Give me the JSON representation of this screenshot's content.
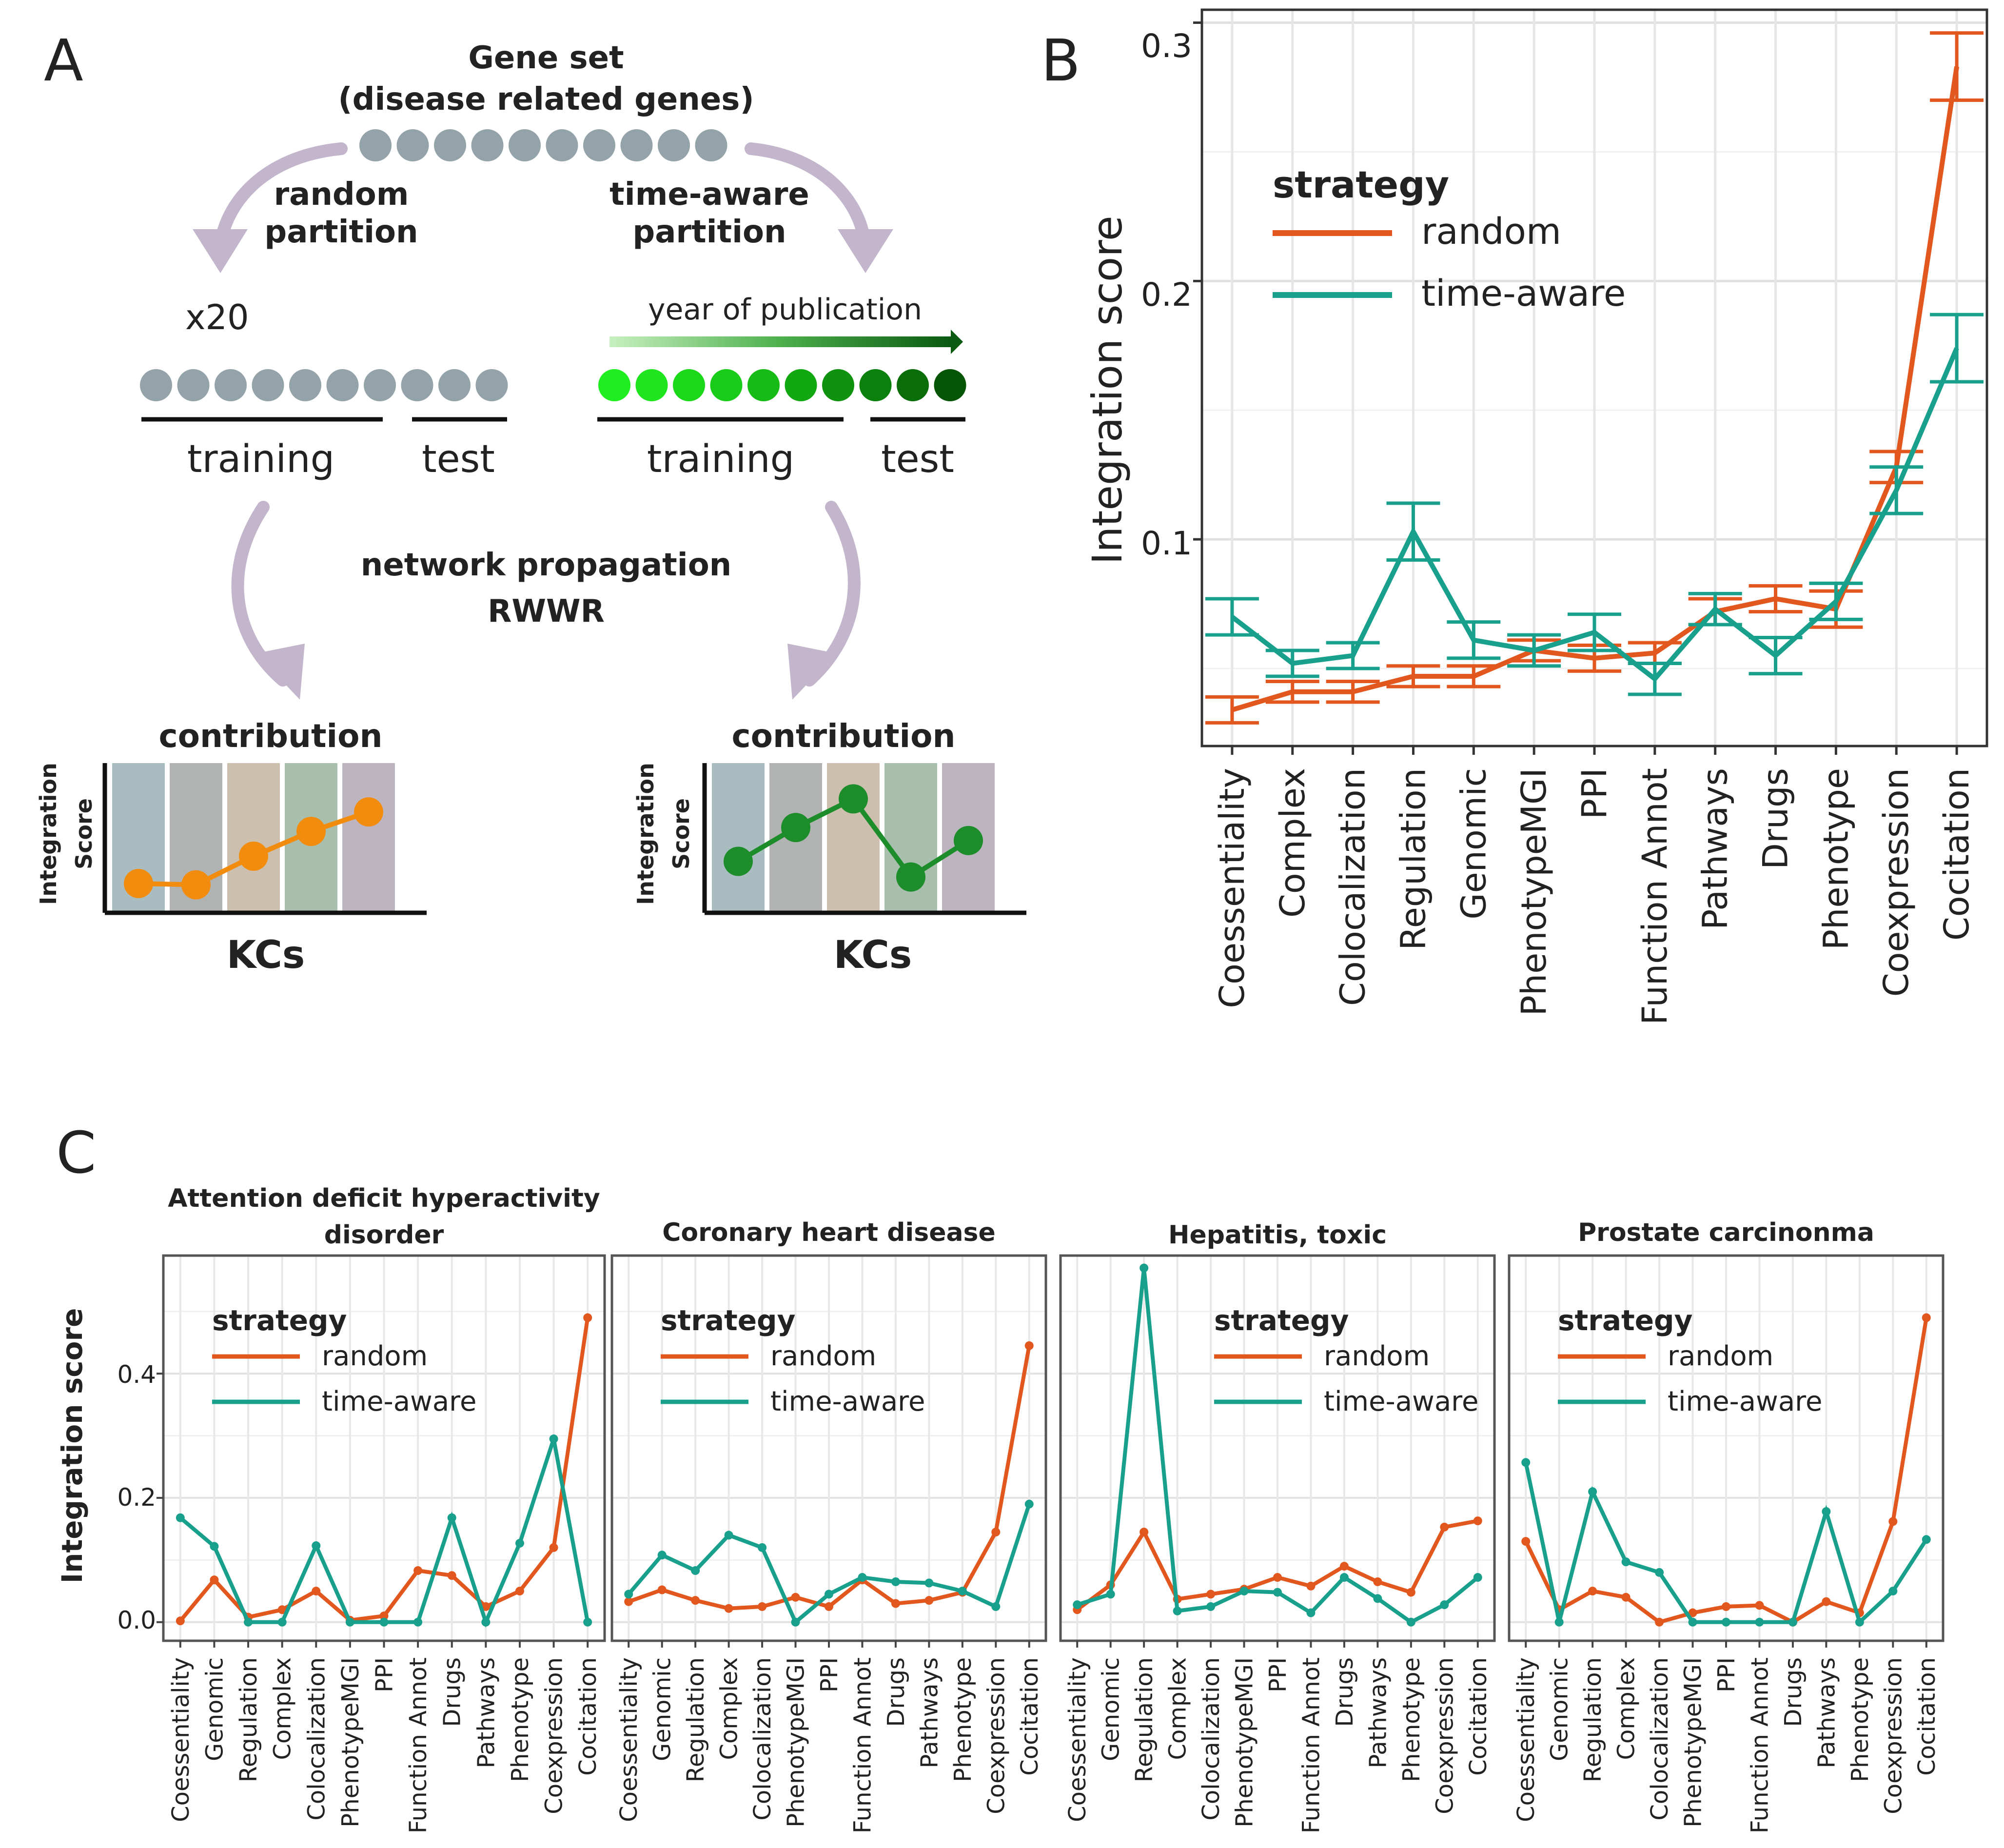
{
  "colors": {
    "random": "#e2571e",
    "time_aware": "#18a08c",
    "gene_dot": "#93a3a9",
    "arrow": "#c3b5cc",
    "grid": "#e5e5e5",
    "panel_border": "#333333",
    "green_shades": [
      "#21ee21",
      "#1fe51f",
      "#1bd81b",
      "#19cc19",
      "#16bb16",
      "#12a812",
      "#0f930f",
      "#0c800c",
      "#096e09",
      "#055505"
    ],
    "kc_bands": [
      "#a9bcc0",
      "#b1b2b2",
      "#cdbfad",
      "#a9bfae",
      "#bcb4bf"
    ],
    "orange_line": "#f28c0f",
    "green_line": "#1d8c2a"
  },
  "panelA": {
    "label": "A",
    "gene_set_line1": "Gene set",
    "gene_set_line2": "(disease related genes)",
    "random_line1": "random",
    "random_line2": "partition",
    "time_line1": "time-aware",
    "time_line2": "partition",
    "x20": "x20",
    "year_label": "year of publication",
    "training_left": "training",
    "test_left": "test",
    "training_right": "training",
    "test_right": "test",
    "propagation_line1": "network propagation",
    "propagation_line2": "RWWR",
    "contribution_left": "contribution",
    "contribution_right": "contribution",
    "ylabel_line1": "Integration",
    "ylabel_line2": "Score",
    "ylabel2_line1": "Integration",
    "ylabel2_line2": "Score",
    "kcs_left": "KCs",
    "kcs_right": "KCs",
    "mini_left": [
      0.15,
      0.14,
      0.36,
      0.55,
      0.7
    ],
    "mini_right": [
      0.32,
      0.58,
      0.8,
      0.2,
      0.48
    ]
  },
  "panelB": {
    "label": "B",
    "legend_title": "strategy",
    "legend_random": "random",
    "legend_time": "time-aware",
    "ylabel": "Integration score",
    "yticks": [
      "0.1",
      "0.2",
      "0.3"
    ]
  },
  "panelC": {
    "label": "C",
    "ylabel": "Integration score",
    "yticks": [
      "0.0",
      "0.2",
      "0.4"
    ],
    "legend_title": "strategy",
    "legend_random": "random",
    "legend_time": "time-aware"
  },
  "chart_data": [
    {
      "panel": "B",
      "type": "line",
      "title": "",
      "xlabel": "",
      "ylabel": "Integration score",
      "ylim": [
        0.02,
        0.305
      ],
      "categories": [
        "Coessentiality",
        "Complex",
        "Colocalization",
        "Regulation",
        "Genomic",
        "PhenotypeMGI",
        "PPI",
        "Function Annot",
        "Pathways",
        "Drugs",
        "Phenotype",
        "Coexpression",
        "Cocitation"
      ],
      "series": [
        {
          "name": "random",
          "values": [
            0.034,
            0.041,
            0.041,
            0.047,
            0.047,
            0.057,
            0.054,
            0.056,
            0.072,
            0.077,
            0.073,
            0.128,
            0.283
          ],
          "errors": [
            0.005,
            0.004,
            0.004,
            0.004,
            0.004,
            0.004,
            0.005,
            0.004,
            0.005,
            0.005,
            0.007,
            0.006,
            0.013
          ]
        },
        {
          "name": "time-aware",
          "values": [
            0.07,
            0.052,
            0.055,
            0.103,
            0.061,
            0.057,
            0.064,
            0.046,
            0.073,
            0.055,
            0.076,
            0.119,
            0.174
          ],
          "errors": [
            0.007,
            0.005,
            0.005,
            0.011,
            0.007,
            0.006,
            0.007,
            0.006,
            0.006,
            0.007,
            0.007,
            0.009,
            0.013
          ]
        }
      ]
    },
    {
      "panel": "C1",
      "type": "line",
      "title": "Attention deficit hyperactivity disorder",
      "ylim": [
        -0.03,
        0.59
      ],
      "categories": [
        "Coessentiality",
        "Genomic",
        "Regulation",
        "Complex",
        "Colocalization",
        "PhenotypeMGI",
        "PPI",
        "Function Annot",
        "Drugs",
        "Pathways",
        "Phenotype",
        "Coexpression",
        "Cocitation"
      ],
      "series": [
        {
          "name": "random",
          "values": [
            0.002,
            0.068,
            0.008,
            0.02,
            0.05,
            0.003,
            0.01,
            0.083,
            0.075,
            0.025,
            0.05,
            0.12,
            0.49
          ]
        },
        {
          "name": "time-aware",
          "values": [
            0.168,
            0.122,
            0.0,
            0.0,
            0.123,
            0.0,
            0.0,
            0.0,
            0.168,
            0.0,
            0.127,
            0.295,
            0.0
          ]
        }
      ]
    },
    {
      "panel": "C2",
      "type": "line",
      "title": "Coronary heart disease",
      "ylim": [
        -0.03,
        0.59
      ],
      "categories": [
        "Coessentiality",
        "Genomic",
        "Regulation",
        "Complex",
        "Colocalization",
        "PhenotypeMGI",
        "PPI",
        "Function Annot",
        "Drugs",
        "Pathways",
        "Phenotype",
        "Coexpression",
        "Cocitation"
      ],
      "series": [
        {
          "name": "random",
          "values": [
            0.033,
            0.052,
            0.035,
            0.022,
            0.025,
            0.04,
            0.025,
            0.068,
            0.03,
            0.035,
            0.048,
            0.145,
            0.445
          ]
        },
        {
          "name": "time-aware",
          "values": [
            0.045,
            0.108,
            0.083,
            0.14,
            0.12,
            0.0,
            0.045,
            0.072,
            0.065,
            0.063,
            0.05,
            0.025,
            0.19
          ]
        }
      ]
    },
    {
      "panel": "C3",
      "type": "line",
      "title": "Hepatitis, toxic",
      "ylim": [
        -0.03,
        0.59
      ],
      "categories": [
        "Coessentiality",
        "Genomic",
        "Regulation",
        "Complex",
        "Colocalization",
        "PhenotypeMGI",
        "PPI",
        "Function Annot",
        "Drugs",
        "Pathways",
        "Phenotype",
        "Coexpression",
        "Cocitation"
      ],
      "series": [
        {
          "name": "random",
          "values": [
            0.02,
            0.06,
            0.145,
            0.037,
            0.045,
            0.053,
            0.072,
            0.058,
            0.09,
            0.065,
            0.048,
            0.153,
            0.163
          ]
        },
        {
          "name": "time-aware",
          "values": [
            0.028,
            0.045,
            0.57,
            0.018,
            0.025,
            0.05,
            0.048,
            0.015,
            0.072,
            0.038,
            0.0,
            0.028,
            0.072
          ]
        }
      ]
    },
    {
      "panel": "C4",
      "type": "line",
      "title": "Prostate carcinonma",
      "ylim": [
        -0.03,
        0.59
      ],
      "categories": [
        "Coessentiality",
        "Genomic",
        "Regulation",
        "Complex",
        "Colocalization",
        "PhenotypeMGI",
        "PPI",
        "Function Annot",
        "Drugs",
        "Pathways",
        "Phenotype",
        "Coexpression",
        "Cocitation"
      ],
      "series": [
        {
          "name": "random",
          "values": [
            0.13,
            0.02,
            0.05,
            0.04,
            0.0,
            0.015,
            0.025,
            0.027,
            0.0,
            0.033,
            0.015,
            0.162,
            0.49
          ]
        },
        {
          "name": "time-aware",
          "values": [
            0.257,
            0.0,
            0.21,
            0.097,
            0.08,
            0.0,
            0.0,
            0.0,
            0.0,
            0.178,
            0.0,
            0.05,
            0.133
          ]
        }
      ]
    }
  ]
}
